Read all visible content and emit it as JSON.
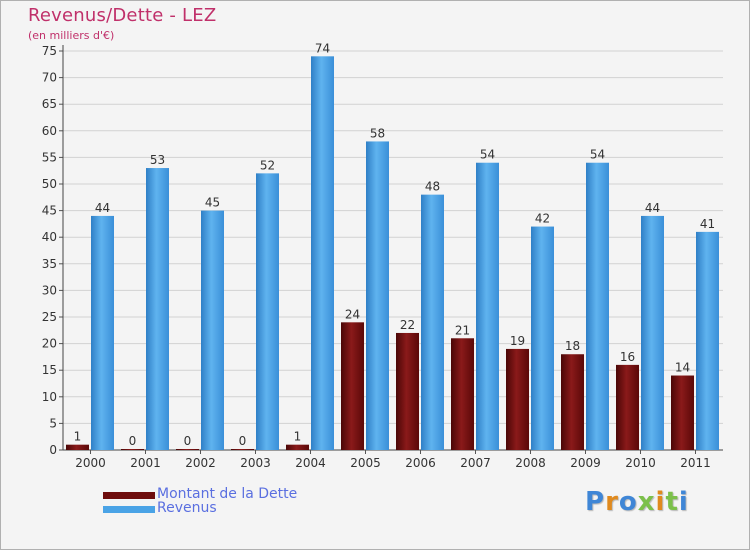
{
  "chart_data": {
    "type": "bar",
    "title": "Revenus/Dette - LEZ",
    "subtitle": "(en milliers d'€)",
    "xlabel": "",
    "ylabel": "",
    "ylim": [
      0,
      75
    ],
    "yticks": [
      0,
      5,
      10,
      15,
      20,
      25,
      30,
      35,
      40,
      45,
      50,
      55,
      60,
      65,
      70,
      75
    ],
    "grid": true,
    "legend_position": "bottom-left",
    "categories": [
      "2000",
      "2001",
      "2002",
      "2003",
      "2004",
      "2005",
      "2006",
      "2007",
      "2008",
      "2009",
      "2010",
      "2011"
    ],
    "series": [
      {
        "name": "Montant de la Dette",
        "color": "#6e0c0c",
        "values": [
          1,
          0,
          0,
          0,
          1,
          24,
          22,
          21,
          19,
          18,
          16,
          14
        ]
      },
      {
        "name": "Revenus",
        "color": "#4aa3e6",
        "values": [
          44,
          53,
          45,
          52,
          74,
          58,
          48,
          54,
          42,
          54,
          44,
          41
        ]
      }
    ]
  },
  "logo": {
    "text": "Proxiti",
    "colors": [
      "#3f86d6",
      "#e08a1e",
      "#3f86d6",
      "#7cc04a",
      "#e08a1e",
      "#7cc04a",
      "#3f86d6"
    ]
  }
}
